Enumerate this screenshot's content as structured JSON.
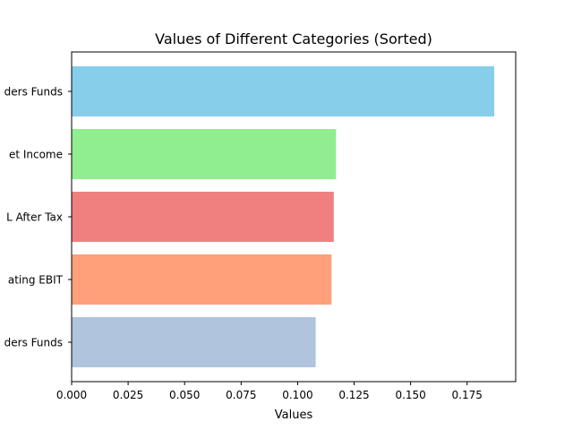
{
  "chart_data": {
    "type": "bar",
    "orientation": "horizontal",
    "title": "Values of Different Categories (Sorted)",
    "xlabel": "Values",
    "ylabel": "",
    "xlim": [
      0,
      0.1965
    ],
    "xticks": [
      "0.000",
      "0.025",
      "0.050",
      "0.075",
      "0.100",
      "0.125",
      "0.150",
      "0.175"
    ],
    "xtick_values": [
      0,
      0.025,
      0.05,
      0.075,
      0.1,
      0.125,
      0.15,
      0.175
    ],
    "grid": false,
    "legend": "none",
    "bars": [
      {
        "label": "ders Funds",
        "value": 0.187,
        "color": "#87ceeb"
      },
      {
        "label": "et Income",
        "value": 0.117,
        "color": "#90ee90"
      },
      {
        "label": "L After Tax",
        "value": 0.116,
        "color": "#f08080"
      },
      {
        "label": "ating EBIT",
        "value": 0.115,
        "color": "#ffa07a"
      },
      {
        "label": "ders Funds",
        "value": 0.108,
        "color": "#b0c4de"
      }
    ]
  }
}
